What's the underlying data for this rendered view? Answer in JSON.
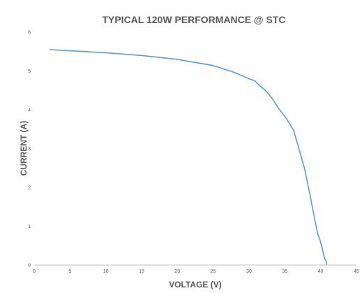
{
  "chart_data": {
    "type": "line",
    "title": "TYPICAL 120W PERFORMANCE @ STC",
    "xlabel": "VOLTAGE (V)",
    "ylabel": "CURRENT (A)",
    "xlim": [
      0,
      45
    ],
    "ylim": [
      0,
      6
    ],
    "x_ticks": [
      "0",
      "5",
      "10",
      "15",
      "20",
      "25",
      "30",
      "35",
      "40",
      "45"
    ],
    "y_ticks": [
      "0",
      "1",
      "2",
      "3",
      "4",
      "5",
      "6"
    ],
    "grid": false,
    "legend": "none",
    "colors": {
      "line": "#5b9bd5",
      "text": "#595959",
      "axis": "#bfbfbf",
      "background": "#ffffff"
    },
    "series": [
      {
        "x": [
          2.2,
          5,
          10,
          15,
          20,
          25,
          28,
          30,
          30.8,
          31.5,
          32.3,
          33.2,
          34.2,
          35.2,
          36.2,
          37.0,
          37.8,
          38.5,
          39.1,
          39.6,
          39.9,
          40.2,
          40.5,
          40.8,
          40.8
        ],
        "y": [
          5.55,
          5.52,
          5.47,
          5.4,
          5.3,
          5.14,
          4.96,
          4.8,
          4.75,
          4.62,
          4.5,
          4.3,
          4.02,
          3.78,
          3.48,
          2.98,
          2.45,
          1.82,
          1.25,
          0.8,
          0.65,
          0.45,
          0.2,
          0.08,
          0.02
        ]
      }
    ]
  }
}
